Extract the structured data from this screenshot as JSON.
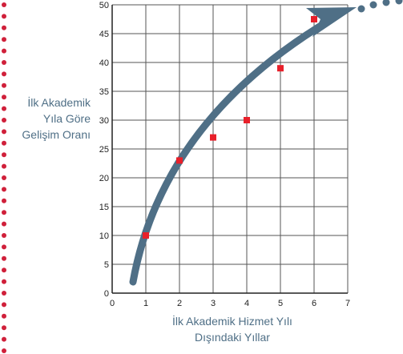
{
  "chart_data": {
    "type": "scatter",
    "ylabel_lines": [
      "İlk Akademik",
      "Yıla Göre",
      "Gelişim Oranı"
    ],
    "xlabel_lines": [
      "İlk Akademik Hizmet Yılı",
      "Dışındaki Yıllar"
    ],
    "xlim": [
      0,
      7
    ],
    "ylim": [
      0,
      50
    ],
    "x_ticks": [
      0,
      1,
      2,
      3,
      4,
      5,
      6,
      7
    ],
    "y_ticks": [
      0,
      5,
      10,
      15,
      20,
      25,
      30,
      35,
      40,
      45,
      50
    ],
    "grid": true,
    "points": [
      {
        "x": 1,
        "y": 10
      },
      {
        "x": 2,
        "y": 23
      },
      {
        "x": 3,
        "y": 27
      },
      {
        "x": 4,
        "y": 30
      },
      {
        "x": 5,
        "y": 39
      },
      {
        "x": 6,
        "y": 47.5
      }
    ],
    "trend_arrow": true,
    "colors": {
      "points": "#e8202a",
      "arrow": "#4f6f86",
      "dots": "#d0203a",
      "axis_text": "#4f6f86"
    }
  }
}
